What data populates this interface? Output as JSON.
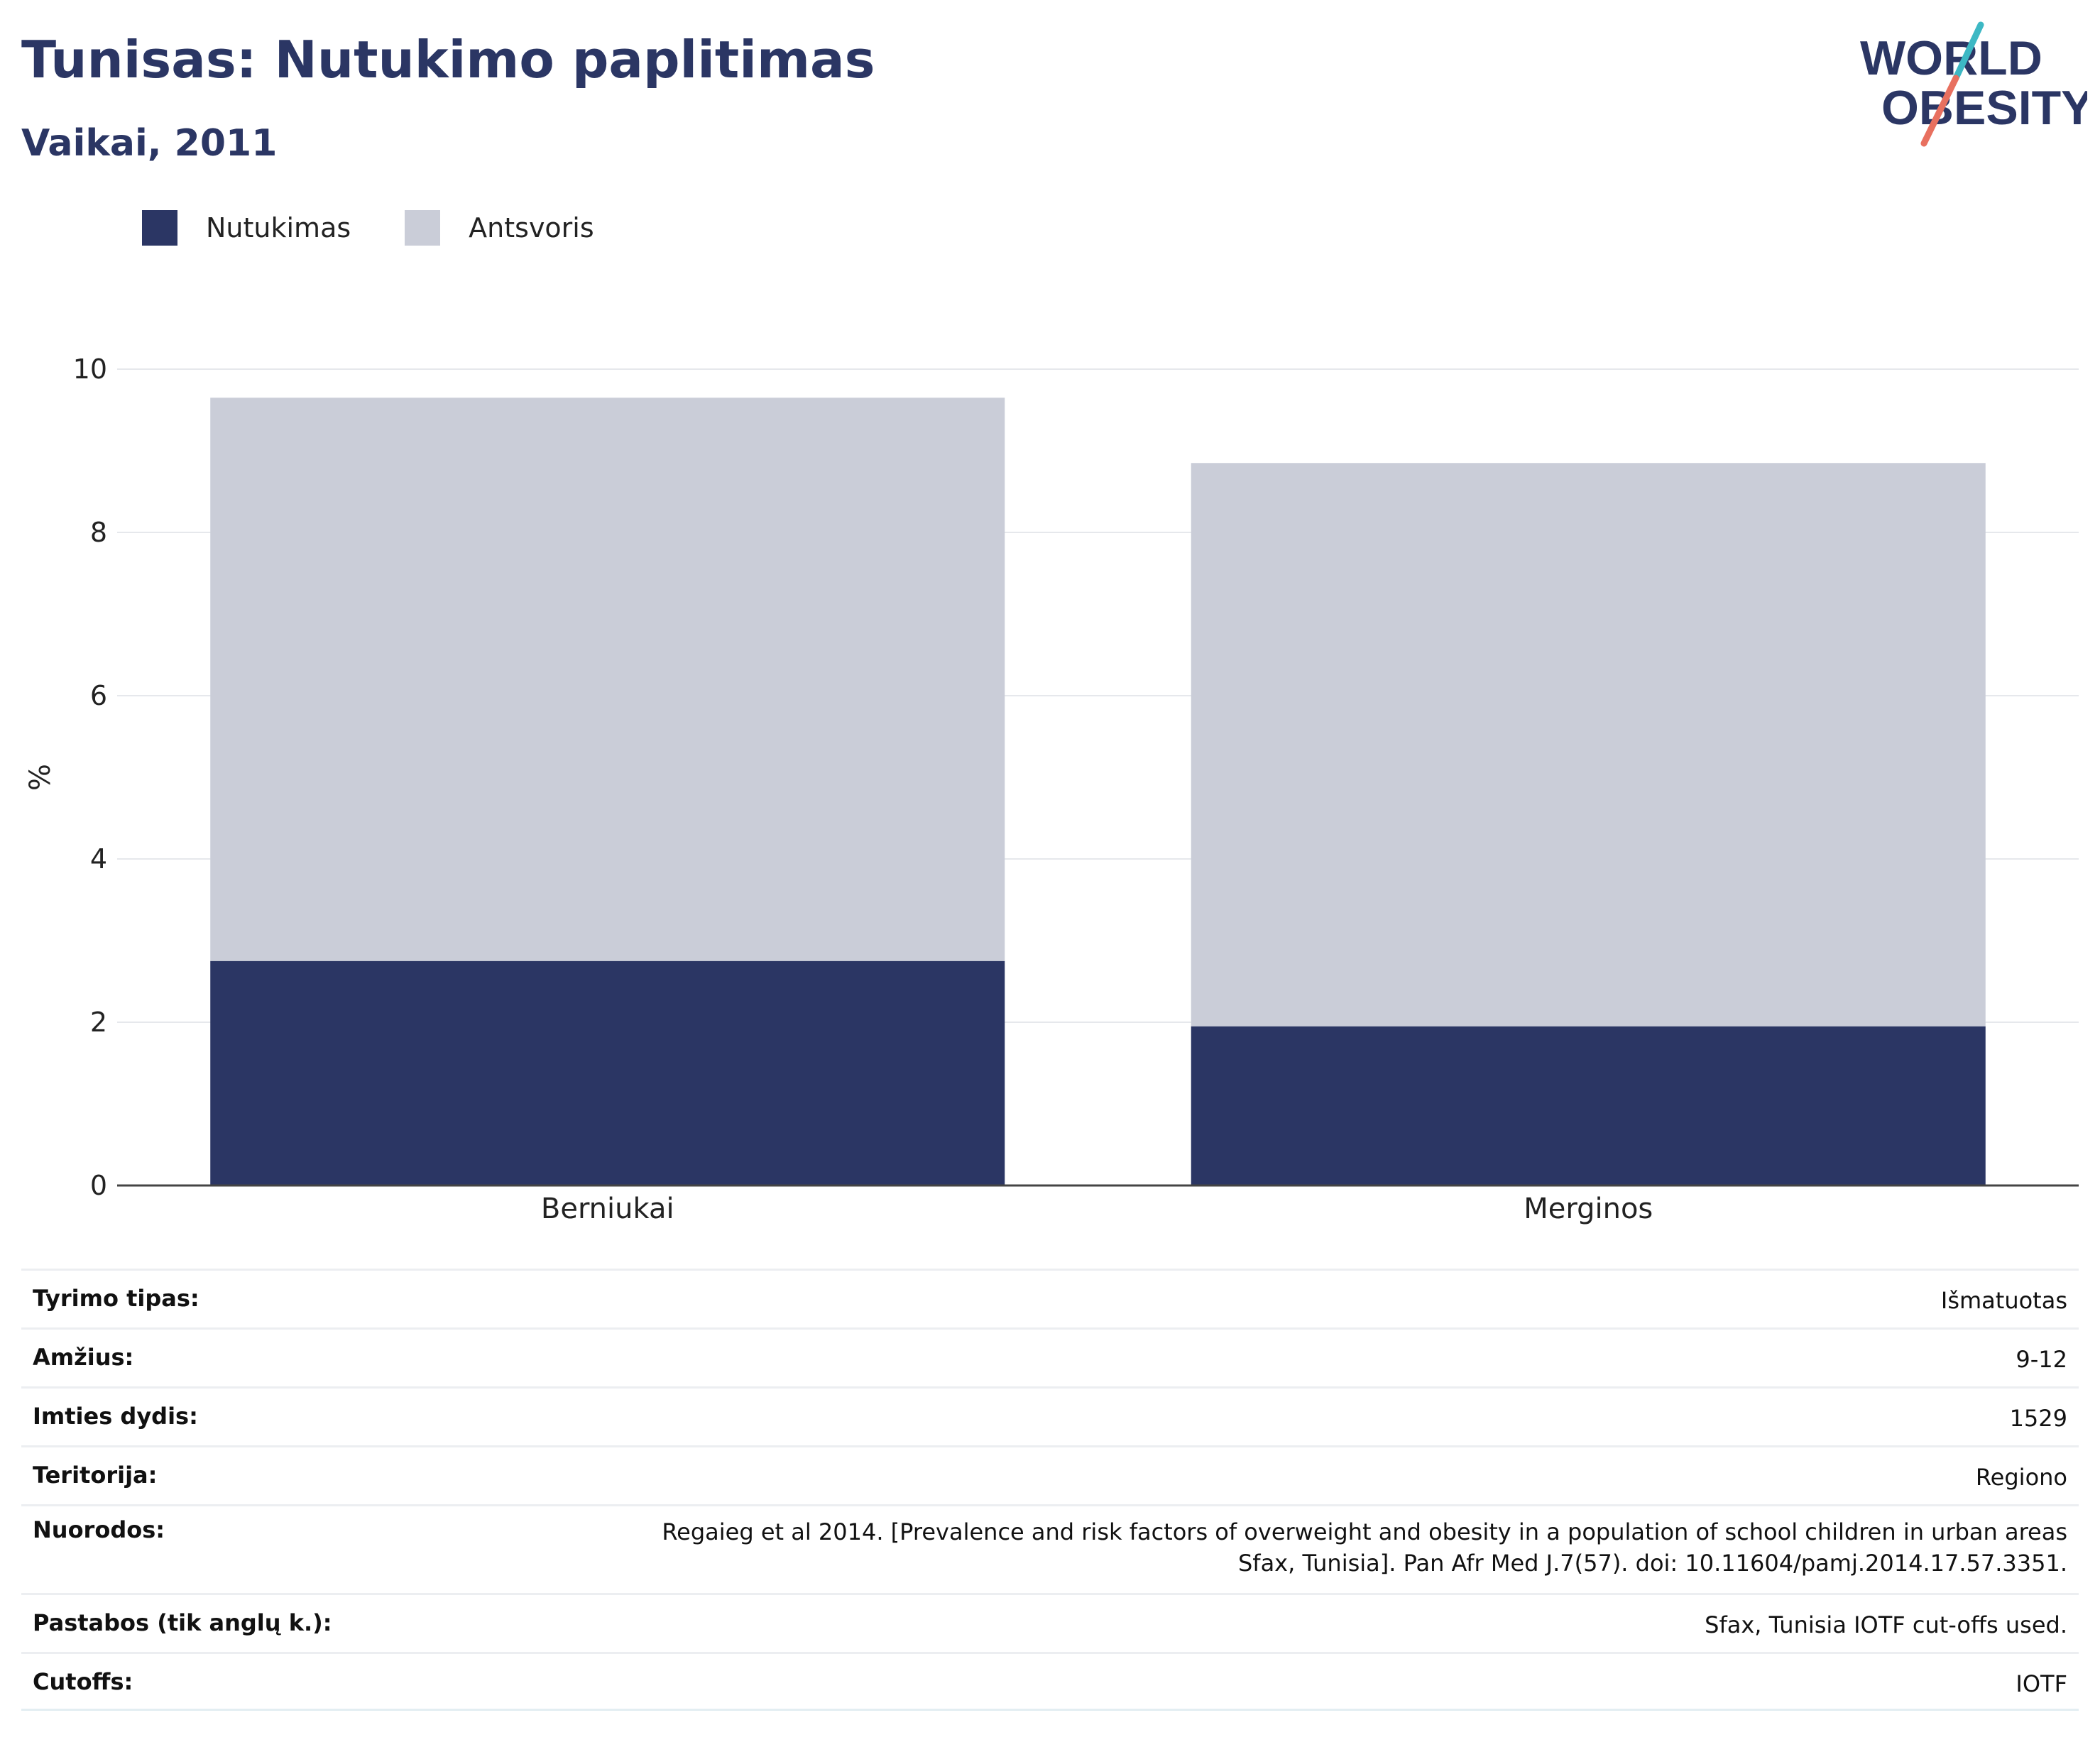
{
  "header": {
    "title": "Tunisas: Nutukimo paplitimas",
    "subtitle": "Vaikai, 2011"
  },
  "logo": {
    "line1": "WORLD",
    "line2": "OBESITY"
  },
  "colors": {
    "obesity": "#2b3664",
    "overweight": "#cacdd8",
    "brand_text": "#2b3664",
    "logo_teal": "#3db8c4",
    "logo_coral": "#e8705f"
  },
  "legend": [
    {
      "label": "Nutukimas",
      "color": "#2b3664"
    },
    {
      "label": "Antsvoris",
      "color": "#cacdd8"
    }
  ],
  "chart_data": {
    "type": "bar",
    "stacked": true,
    "categories": [
      "Berniukai",
      "Merginos"
    ],
    "series": [
      {
        "name": "Nutukimas",
        "values": [
          2.75,
          1.95
        ]
      },
      {
        "name": "Antsvoris",
        "values": [
          6.9,
          6.9
        ]
      }
    ],
    "ylabel": "%",
    "ylim": [
      0,
      10
    ],
    "yticks": [
      0,
      2,
      4,
      6,
      8,
      10
    ],
    "grid": true,
    "legend_position": "top-left"
  },
  "info": [
    {
      "label": "Tyrimo tipas:",
      "value": "Išmatuotas"
    },
    {
      "label": "Amžius:",
      "value": "9-12"
    },
    {
      "label": "Imties dydis:",
      "value": "1529"
    },
    {
      "label": "Teritorija:",
      "value": "Regiono"
    },
    {
      "label": "Nuorodos:",
      "value": "Regaieg et al 2014. [Prevalence and risk factors of overweight and obesity in a population of school children in urban areas Sfax, Tunisia]. Pan Afr Med J.7(57). doi: 10.11604/pamj.2014.17.57.3351."
    },
    {
      "label": "Pastabos (tik anglų k.):",
      "value": "Sfax, Tunisia IOTF cut-offs used."
    },
    {
      "label": "Cutoffs:",
      "value": "IOTF"
    }
  ]
}
